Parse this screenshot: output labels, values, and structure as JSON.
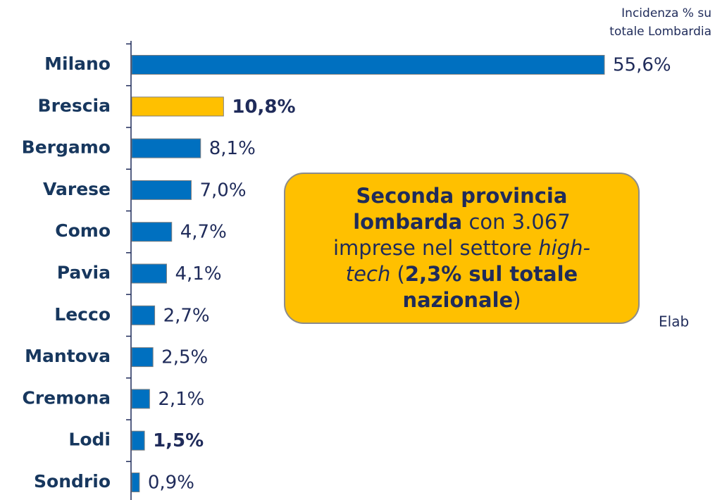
{
  "chart_data": {
    "type": "hbar",
    "categories": [
      "Milano",
      "Brescia",
      "Bergamo",
      "Varese",
      "Como",
      "Pavia",
      "Lecco",
      "Mantova",
      "Cremona",
      "Lodi",
      "Sondrio"
    ],
    "values": [
      55.6,
      10.8,
      8.1,
      7.0,
      4.7,
      4.1,
      2.7,
      2.5,
      2.1,
      1.5,
      0.9
    ],
    "value_labels": [
      "55,6%",
      "10,8%",
      "8,1%",
      "7,0%",
      "4,7%",
      "4,1%",
      "2,7%",
      "2,5%",
      "2,1%",
      "1,5%",
      "0,9%"
    ],
    "colors": [
      "#0070c0",
      "#ffc000",
      "#0070c0",
      "#0070c0",
      "#0070c0",
      "#0070c0",
      "#0070c0",
      "#0070c0",
      "#0070c0",
      "#0070c0",
      "#0070c0"
    ],
    "bold_value_labels": [
      false,
      true,
      false,
      false,
      false,
      false,
      false,
      false,
      false,
      true,
      false
    ],
    "value_axis_label": [
      "Incidenza % su",
      "totale Lombardia"
    ],
    "annotation": [
      {
        "text": "Seconda provincia lombarda",
        "bold": true
      },
      {
        "text": " con 3.067 imprese nel settore "
      },
      {
        "text": "high-tech",
        "italic": true
      },
      {
        "text": " ("
      },
      {
        "text": "2,3% sul totale nazionale",
        "bold": true
      },
      {
        "text": ")"
      }
    ],
    "source_fragment": "Elab"
  }
}
